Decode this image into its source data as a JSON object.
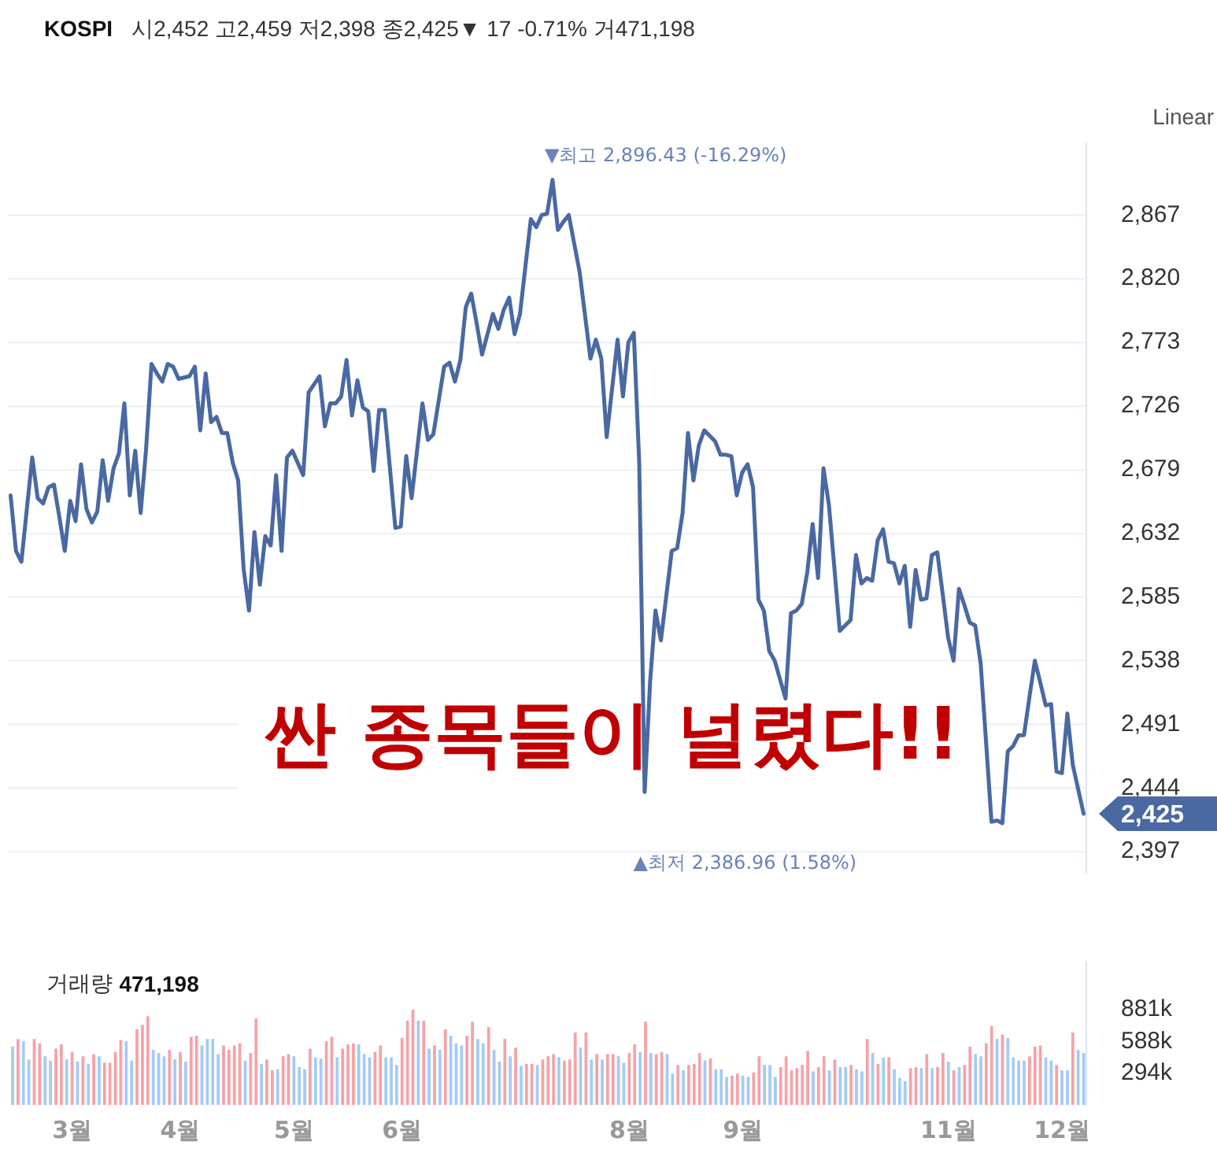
{
  "chart_data": [
    {
      "type": "line",
      "title": "KOSPI",
      "subtitle": "시2,452 고2,459 저2,398 종2,425▼ 17 -0.71% 거471,198",
      "categories": [
        null,
        null,
        null,
        null,
        null,
        null,
        null,
        null,
        null,
        null,
        null,
        null,
        null,
        null,
        null,
        null,
        null,
        null,
        null,
        null,
        null,
        null,
        null,
        null,
        null,
        null,
        null,
        null,
        null,
        null,
        null,
        null,
        null,
        null,
        null,
        null,
        null,
        null,
        null,
        null,
        null,
        null,
        null,
        null,
        null,
        null,
        null,
        null,
        null,
        null,
        null,
        null,
        null,
        null,
        null,
        null,
        null,
        null,
        null,
        null,
        null,
        null,
        null,
        null,
        null,
        null,
        null,
        null,
        null,
        null,
        null,
        null,
        null,
        null,
        null,
        null,
        null,
        null,
        null,
        null,
        null,
        null,
        null,
        null,
        null,
        null,
        null,
        null,
        null,
        null,
        null,
        null,
        null,
        null,
        null,
        null,
        null,
        null,
        null,
        null,
        null,
        null,
        null,
        null,
        null,
        null,
        null,
        null,
        null,
        null,
        null,
        null,
        null,
        null,
        null,
        null,
        null,
        null,
        null,
        null,
        null,
        null,
        null,
        null,
        null,
        null,
        null,
        null,
        null,
        null,
        null,
        null,
        null,
        null,
        null,
        null,
        null,
        null,
        null,
        null,
        null,
        null,
        null,
        null,
        null,
        null,
        null,
        null,
        null,
        null,
        null,
        null,
        null,
        null,
        null,
        null,
        null,
        null,
        null,
        null,
        null,
        null,
        null,
        null,
        null,
        null,
        null,
        null,
        null,
        null,
        null,
        null,
        null,
        null,
        null,
        null,
        null,
        null,
        null,
        null,
        null,
        null,
        null,
        null,
        null,
        null,
        null,
        null,
        null,
        null,
        null,
        null,
        null,
        null,
        null,
        null,
        null,
        null,
        null
      ],
      "series": [
        {
          "color": "#4a69a3",
          "values": [
            2660,
            2619,
            2611,
            2650,
            2688,
            2658,
            2654,
            2666,
            2668,
            2644,
            2619,
            2656,
            2641,
            2683,
            2650,
            2640,
            2648,
            2686,
            2656,
            2680,
            2691,
            2728,
            2660,
            2693,
            2647,
            2694,
            2757,
            2750,
            2744,
            2757,
            2755,
            2746,
            2747,
            2748,
            2755,
            2708,
            2750,
            2714,
            2718,
            2706,
            2706,
            2684,
            2671,
            2606,
            2575,
            2633,
            2594,
            2630,
            2623,
            2675,
            2619,
            2688,
            2693,
            2684,
            2675,
            2736,
            2742,
            2748,
            2711,
            2728,
            2728,
            2733,
            2760,
            2719,
            2745,
            2725,
            2722,
            2678,
            2723,
            2723,
            2680,
            2636,
            2637,
            2689,
            2658,
            2693,
            2728,
            2701,
            2705,
            2730,
            2755,
            2758,
            2744,
            2760,
            2799,
            2809,
            2787,
            2764,
            2779,
            2794,
            2783,
            2797,
            2806,
            2779,
            2794,
            2829,
            2864,
            2858,
            2867,
            2868,
            2893,
            2856,
            2862,
            2867,
            2846,
            2825,
            2793,
            2761,
            2775,
            2761,
            2703,
            2739,
            2775,
            2733,
            2773,
            2780,
            2684,
            2441,
            2522,
            2575,
            2553,
            2586,
            2619,
            2621,
            2647,
            2706,
            2671,
            2697,
            2708,
            2704,
            2700,
            2690,
            2690,
            2689,
            2660,
            2677,
            2683,
            2666,
            2583,
            2575,
            2545,
            2538,
            2524,
            2510,
            2573,
            2575,
            2580,
            2603,
            2639,
            2599,
            2680,
            2653,
            2607,
            2560,
            2564,
            2568,
            2616,
            2595,
            2599,
            2597,
            2627,
            2635,
            2611,
            2610,
            2595,
            2608,
            2563,
            2605,
            2583,
            2584,
            2616,
            2618,
            2587,
            2555,
            2538,
            2591,
            2579,
            2566,
            2564,
            2536,
            2478,
            2419,
            2420,
            2418,
            2471,
            2475,
            2483,
            2483,
            2511,
            2538,
            2522,
            2505,
            2506,
            2456,
            2455,
            2499,
            2461,
            2443,
            2425
          ]
        }
      ],
      "ylim": [
        2382,
        2920
      ],
      "yticks": [
        {
          "value": 2397,
          "label": "2,397"
        },
        {
          "value": 2444,
          "label": "2,444"
        },
        {
          "value": 2491,
          "label": "2,491"
        },
        {
          "value": 2538,
          "label": "2,538"
        },
        {
          "value": 2585,
          "label": "2,585"
        },
        {
          "value": 2632,
          "label": "2,632"
        },
        {
          "value": 2679,
          "label": "2,679"
        },
        {
          "value": 2726,
          "label": "2,726"
        },
        {
          "value": 2773,
          "label": "2,773"
        },
        {
          "value": 2820,
          "label": "2,820"
        },
        {
          "value": 2867,
          "label": "2,867"
        }
      ],
      "grid": "y",
      "tick_labels": "y",
      "marker": "none",
      "annotations": [
        "Linear",
        "싼 종목들이 널렸다!!",
        "▼최고 2,896.43 (-16.29%)",
        "▲최저 2,386.96 (1.58%)",
        "2,425"
      ]
    },
    {
      "type": "bar",
      "title": "거래량 471,198",
      "categories": [
        null,
        null,
        null,
        null,
        null,
        null,
        null,
        null,
        null,
        null,
        null,
        "3월",
        null,
        null,
        null,
        null,
        null,
        null,
        null,
        null,
        null,
        null,
        null,
        null,
        null,
        null,
        null,
        null,
        null,
        null,
        null,
        "4월",
        null,
        null,
        null,
        null,
        null,
        null,
        null,
        null,
        null,
        null,
        null,
        null,
        null,
        null,
        null,
        null,
        null,
        null,
        null,
        null,
        "5월",
        null,
        null,
        null,
        null,
        null,
        null,
        null,
        null,
        null,
        null,
        null,
        null,
        null,
        null,
        null,
        null,
        null,
        null,
        null,
        "6월",
        null,
        null,
        null,
        null,
        null,
        null,
        null,
        null,
        null,
        null,
        null,
        null,
        null,
        null,
        null,
        null,
        null,
        null,
        null,
        null,
        null,
        null,
        null,
        null,
        null,
        null,
        null,
        null,
        null,
        null,
        null,
        null,
        null,
        null,
        null,
        null,
        null,
        null,
        null,
        null,
        null,
        "8월",
        null,
        null,
        null,
        null,
        null,
        null,
        null,
        null,
        null,
        null,
        null,
        null,
        null,
        null,
        null,
        null,
        null,
        null,
        null,
        null,
        "9월",
        null,
        null,
        null,
        null,
        null,
        null,
        null,
        null,
        null,
        null,
        null,
        null,
        null,
        null,
        null,
        null,
        null,
        null,
        null,
        null,
        null,
        null,
        null,
        null,
        null,
        null,
        null,
        null,
        null,
        null,
        null,
        null,
        null,
        null,
        null,
        null,
        null,
        "11월",
        null,
        null,
        null,
        null,
        null,
        null,
        null,
        null,
        null,
        null,
        null,
        null,
        null,
        null,
        null,
        null,
        null,
        null,
        null,
        null,
        "12월",
        null,
        null,
        null,
        null
      ],
      "values": [
        540,
        610,
        590,
        420,
        610,
        570,
        450,
        410,
        520,
        560,
        420,
        490,
        400,
        450,
        380,
        470,
        450,
        390,
        390,
        490,
        600,
        590,
        410,
        700,
        740,
        820,
        510,
        480,
        450,
        510,
        420,
        490,
        400,
        630,
        640,
        550,
        610,
        610,
        470,
        550,
        510,
        550,
        570,
        410,
        480,
        800,
        380,
        420,
        320,
        330,
        450,
        470,
        450,
        350,
        330,
        520,
        440,
        430,
        590,
        630,
        440,
        520,
        560,
        570,
        560,
        470,
        440,
        490,
        550,
        440,
        440,
        370,
        620,
        780,
        880,
        780,
        780,
        520,
        550,
        510,
        700,
        640,
        570,
        550,
        640,
        770,
        610,
        570,
        720,
        510,
        400,
        610,
        450,
        530,
        360,
        380,
        380,
        370,
        420,
        450,
        470,
        440,
        410,
        420,
        670,
        530,
        670,
        420,
        470,
        420,
        470,
        470,
        450,
        390,
        480,
        560,
        490,
        770,
        480,
        470,
        490,
        470,
        290,
        370,
        320,
        370,
        380,
        480,
        410,
        430,
        330,
        330,
        260,
        270,
        290,
        270,
        260,
        300,
        450,
        370,
        370,
        260,
        350,
        450,
        320,
        340,
        370,
        500,
        310,
        350,
        450,
        320,
        420,
        350,
        350,
        370,
        330,
        310,
        610,
        480,
        380,
        440,
        440,
        330,
        250,
        220,
        340,
        350,
        340,
        470,
        340,
        350,
        480,
        400,
        320,
        350,
        370,
        540,
        470,
        450,
        570,
        730,
        610,
        650,
        620,
        440,
        410,
        410,
        450,
        540,
        550,
        440,
        410,
        370,
        320,
        320,
        670,
        510,
        480
      ],
      "colors": [
        "#a5cbf5",
        "#f5a3a8",
        "#a5cbf5",
        "#a5cbf5",
        "#f5a3a8",
        "#f5a3a8",
        "#a5cbf5",
        "#a5cbf5",
        "#f5a3a8",
        "#f5a3a8",
        "#a5cbf5",
        "#f5a3a8",
        "#a5cbf5",
        "#f5a3a8",
        "#a5cbf5",
        "#f5a3a8",
        "#a5cbf5",
        "#f5a3a8",
        "#f5a3a8",
        "#f5a3a8",
        "#f5a3a8",
        "#a5cbf5",
        "#a5cbf5",
        "#f5a3a8",
        "#f5a3a8",
        "#f5a3a8",
        "#a5cbf5",
        "#a5cbf5",
        "#a5cbf5",
        "#f5a3a8",
        "#a5cbf5",
        "#f5a3a8",
        "#a5cbf5",
        "#f5a3a8",
        "#f5a3a8",
        "#a5cbf5",
        "#a5cbf5",
        "#a5cbf5",
        "#a5cbf5",
        "#f5a3a8",
        "#f5a3a8",
        "#f5a3a8",
        "#f5a3a8",
        "#a5cbf5",
        "#f5a3a8",
        "#f5a3a8",
        "#a5cbf5",
        "#f5a3a8",
        "#f5a3a8",
        "#a5cbf5",
        "#f5a3a8",
        "#f5a3a8",
        "#a5cbf5",
        "#a5cbf5",
        "#a5cbf5",
        "#f5a3a8",
        "#a5cbf5",
        "#a5cbf5",
        "#f5a3a8",
        "#f5a3a8",
        "#a5cbf5",
        "#f5a3a8",
        "#f5a3a8",
        "#f5a3a8",
        "#a5cbf5",
        "#a5cbf5",
        "#a5cbf5",
        "#f5a3a8",
        "#f5a3a8",
        "#a5cbf5",
        "#a5cbf5",
        "#a5cbf5",
        "#f5a3a8",
        "#f5a3a8",
        "#f5a3a8",
        "#a5cbf5",
        "#f5a3a8",
        "#a5cbf5",
        "#f5a3a8",
        "#a5cbf5",
        "#f5a3a8",
        "#a5cbf5",
        "#a5cbf5",
        "#a5cbf5",
        "#f5a3a8",
        "#f5a3a8",
        "#a5cbf5",
        "#a5cbf5",
        "#f5a3a8",
        "#a5cbf5",
        "#a5cbf5",
        "#f5a3a8",
        "#a5cbf5",
        "#f5a3a8",
        "#a5cbf5",
        "#f5a3a8",
        "#f5a3a8",
        "#a5cbf5",
        "#f5a3a8",
        "#f5a3a8",
        "#f5a3a8",
        "#a5cbf5",
        "#f5a3a8",
        "#f5a3a8",
        "#f5a3a8",
        "#a5cbf5",
        "#f5a3a8",
        "#a5cbf5",
        "#f5a3a8",
        "#a5cbf5",
        "#f5a3a8",
        "#f5a3a8",
        "#a5cbf5",
        "#a5cbf5",
        "#f5a3a8",
        "#f5a3a8",
        "#a5cbf5",
        "#f5a3a8",
        "#a5cbf5",
        "#f5a3a8",
        "#f5a3a8",
        "#a5cbf5",
        "#a5cbf5",
        "#f5a3a8",
        "#a5cbf5",
        "#f5a3a8",
        "#f5a3a8",
        "#f5a3a8",
        "#a5cbf5",
        "#f5a3a8",
        "#a5cbf5",
        "#a5cbf5",
        "#a5cbf5",
        "#f5a3a8",
        "#f5a3a8",
        "#a5cbf5",
        "#a5cbf5",
        "#f5a3a8",
        "#f5a3a8",
        "#a5cbf5",
        "#a5cbf5",
        "#a5cbf5",
        "#f5a3a8",
        "#f5a3a8",
        "#f5a3a8",
        "#f5a3a8",
        "#f5a3a8",
        "#f5a3a8",
        "#a5cbf5",
        "#f5a3a8",
        "#f5a3a8",
        "#a5cbf5",
        "#f5a3a8",
        "#a5cbf5",
        "#a5cbf5",
        "#f5a3a8",
        "#a5cbf5",
        "#a5cbf5",
        "#f5a3a8",
        "#a5cbf5",
        "#f5a3a8",
        "#a5cbf5",
        "#f5a3a8",
        "#a5cbf5",
        "#a5cbf5",
        "#a5cbf5",
        "#f5a3a8",
        "#f5a3a8",
        "#a5cbf5",
        "#f5a3a8",
        "#a5cbf5",
        "#f5a3a8",
        "#f5a3a8",
        "#a5cbf5",
        "#f5a3a8",
        "#a5cbf5",
        "#f5a3a8",
        "#f5a3a8",
        "#a5cbf5",
        "#a5cbf5",
        "#f5a3a8",
        "#f5a3a8",
        "#a5cbf5",
        "#f5a3a8",
        "#a5cbf5",
        "#a5cbf5",
        "#a5cbf5",
        "#a5cbf5",
        "#f5a3a8",
        "#f5a3a8",
        "#f5a3a8",
        "#a5cbf5",
        "#a5cbf5",
        "#f5a3a8",
        "#a5cbf5",
        "#a5cbf5",
        "#f5a3a8",
        "#a5cbf5",
        "#a5cbf5"
      ],
      "ylim": [
        0,
        1325
      ],
      "yticks": [
        {
          "value": 294,
          "label": "294k"
        },
        {
          "value": 588,
          "label": "588k"
        },
        {
          "value": 881,
          "label": "881k"
        }
      ]
    }
  ]
}
